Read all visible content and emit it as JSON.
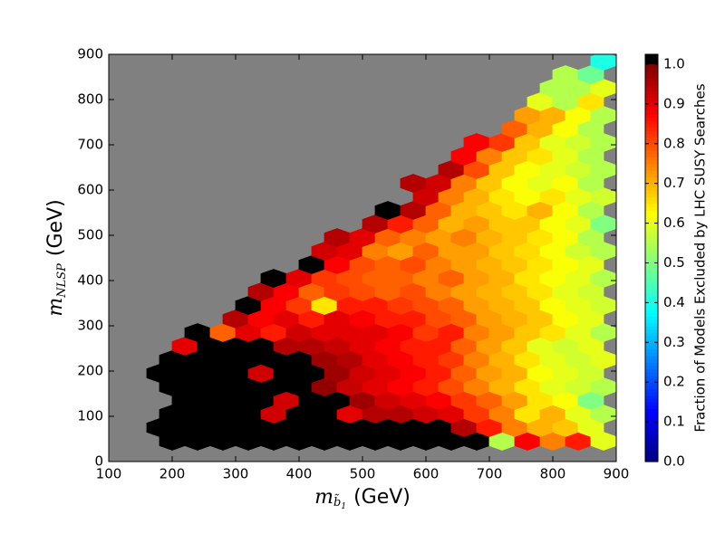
{
  "chart_data": {
    "type": "hexbin",
    "xlabel_symbol": "m",
    "xlabel_subscript": "b̃",
    "xlabel_subsubscript": "1",
    "xlabel_unit": "(GeV)",
    "ylabel_symbol": "m",
    "ylabel_subscript": "NLSP",
    "ylabel_unit": "(GeV)",
    "colorbar_label": "Fraction of Models Excluded by LHC SUSY Searches",
    "xlim": [
      100,
      900
    ],
    "xticks": [
      100,
      200,
      300,
      400,
      500,
      600,
      700,
      800,
      900
    ],
    "ylim": [
      0,
      900
    ],
    "yticks": [
      0,
      100,
      200,
      300,
      400,
      500,
      600,
      700,
      800,
      900
    ],
    "clim": [
      0,
      1.025
    ],
    "cticks": [
      {
        "value": 0,
        "label": "0.0"
      },
      0.1,
      0.2,
      0.3,
      0.4,
      0.5,
      0.6,
      0.7,
      0.8,
      0.9,
      {
        "value": 1,
        "label": "1.0"
      }
    ],
    "colormap": "jet",
    "max_color": "#000000",
    "background": "#808080",
    "rows": [
      {
        "y": 45,
        "x": [
          200,
          240,
          280,
          320,
          360,
          400,
          440,
          480,
          520,
          560,
          600,
          640,
          680,
          720,
          760,
          800,
          840,
          880
        ],
        "values": [
          1,
          1,
          1,
          1,
          1,
          1,
          1,
          1,
          1,
          1,
          1,
          1,
          1,
          0.55,
          0.88,
          0.75,
          0.85,
          0.6
        ]
      },
      {
        "y": 75,
        "x": [
          180,
          220,
          260,
          300,
          340,
          380,
          420,
          460,
          500,
          540,
          580,
          620,
          660,
          700,
          740,
          780,
          820,
          860
        ],
        "values": [
          1,
          1,
          1,
          1,
          1,
          1,
          1,
          1,
          1,
          1,
          1,
          1,
          0.95,
          0.85,
          0.75,
          0.7,
          0.68,
          0.6
        ]
      },
      {
        "y": 105,
        "x": [
          200,
          240,
          280,
          320,
          360,
          400,
          440,
          480,
          520,
          560,
          600,
          640,
          680,
          720,
          760,
          800,
          840,
          880
        ],
        "values": [
          1,
          1,
          1,
          1,
          0.92,
          1,
          1,
          0.9,
          0.95,
          0.95,
          0.92,
          0.9,
          0.82,
          0.75,
          0.65,
          0.7,
          0.6,
          0.55
        ]
      },
      {
        "y": 135,
        "x": [
          220,
          260,
          300,
          340,
          380,
          420,
          460,
          500,
          540,
          580,
          620,
          660,
          700,
          740,
          780,
          820,
          860
        ],
        "values": [
          1,
          1,
          1,
          1,
          0.92,
          1,
          1,
          0.97,
          0.92,
          0.9,
          0.88,
          0.82,
          0.78,
          0.72,
          0.65,
          0.62,
          0.5
        ]
      },
      {
        "y": 165,
        "x": [
          200,
          240,
          280,
          320,
          360,
          400,
          440,
          480,
          520,
          560,
          600,
          640,
          680,
          720,
          760,
          800,
          840,
          880
        ],
        "values": [
          1,
          1,
          1,
          1,
          1,
          1,
          0.98,
          0.93,
          0.9,
          0.88,
          0.85,
          0.8,
          0.75,
          0.7,
          0.65,
          0.6,
          0.58,
          0.55
        ]
      },
      {
        "y": 195,
        "x": [
          180,
          220,
          260,
          300,
          340,
          380,
          420,
          460,
          500,
          540,
          580,
          620,
          660,
          700,
          740,
          780,
          820,
          860
        ],
        "values": [
          1,
          1,
          1,
          1,
          0.92,
          1,
          1,
          0.97,
          0.92,
          0.9,
          0.88,
          0.85,
          0.78,
          0.72,
          0.7,
          0.62,
          0.6,
          0.58
        ]
      },
      {
        "y": 225,
        "x": [
          200,
          240,
          280,
          320,
          360,
          400,
          440,
          480,
          520,
          560,
          600,
          640,
          680,
          720,
          760,
          800,
          840,
          880
        ],
        "values": [
          1,
          1,
          1,
          1,
          1,
          1,
          0.97,
          0.95,
          0.9,
          0.88,
          0.85,
          0.82,
          0.75,
          0.7,
          0.65,
          0.6,
          0.58,
          0.6
        ]
      },
      {
        "y": 255,
        "x": [
          220,
          260,
          300,
          340,
          380,
          420,
          460,
          500,
          540,
          580,
          620,
          660,
          700,
          740,
          780,
          820,
          860
        ],
        "values": [
          0.9,
          1,
          1,
          1,
          0.95,
          0.95,
          0.93,
          0.9,
          0.88,
          0.85,
          0.85,
          0.78,
          0.72,
          0.68,
          0.6,
          0.58,
          0.6
        ]
      },
      {
        "y": 285,
        "x": [
          240,
          280,
          320,
          360,
          400,
          440,
          480,
          520,
          560,
          600,
          640,
          680,
          720,
          760,
          800,
          840,
          880
        ],
        "values": [
          1,
          0.78,
          0.9,
          0.85,
          0.92,
          0.9,
          0.9,
          0.9,
          0.88,
          0.82,
          0.85,
          0.75,
          0.72,
          0.68,
          0.65,
          0.6,
          0.55
        ]
      },
      {
        "y": 315,
        "x": [
          300,
          340,
          380,
          420,
          460,
          500,
          540,
          580,
          620,
          660,
          700,
          740,
          780,
          820,
          860
        ],
        "values": [
          0.95,
          0.88,
          0.9,
          0.85,
          0.9,
          0.88,
          0.85,
          0.85,
          0.8,
          0.78,
          0.72,
          0.7,
          0.68,
          0.62,
          0.6
        ]
      },
      {
        "y": 345,
        "x": [
          320,
          360,
          400,
          440,
          480,
          520,
          560,
          600,
          640,
          680,
          720,
          760,
          800,
          840,
          880
        ],
        "values": [
          1,
          0.88,
          0.82,
          0.65,
          0.85,
          0.85,
          0.82,
          0.8,
          0.78,
          0.72,
          0.7,
          0.68,
          0.62,
          0.6,
          0.58
        ]
      },
      {
        "y": 375,
        "x": [
          340,
          380,
          420,
          460,
          500,
          540,
          580,
          620,
          660,
          700,
          740,
          780,
          820,
          860
        ],
        "values": [
          0.95,
          0.88,
          0.78,
          0.82,
          0.8,
          0.78,
          0.8,
          0.75,
          0.72,
          0.7,
          0.68,
          0.65,
          0.6,
          0.58
        ]
      },
      {
        "y": 405,
        "x": [
          360,
          400,
          440,
          480,
          520,
          560,
          600,
          640,
          680,
          720,
          760,
          800,
          840,
          880
        ],
        "values": [
          1,
          0.9,
          0.82,
          0.8,
          0.78,
          0.78,
          0.75,
          0.78,
          0.72,
          0.7,
          0.65,
          0.62,
          0.6,
          0.55
        ]
      },
      {
        "y": 435,
        "x": [
          420,
          460,
          500,
          540,
          580,
          620,
          660,
          700,
          740,
          780,
          820,
          860
        ],
        "values": [
          1,
          0.88,
          0.8,
          0.78,
          0.8,
          0.75,
          0.72,
          0.7,
          0.68,
          0.65,
          0.62,
          0.6
        ]
      },
      {
        "y": 465,
        "x": [
          440,
          480,
          520,
          560,
          600,
          640,
          680,
          720,
          760,
          800,
          840,
          880
        ],
        "values": [
          0.92,
          0.9,
          0.75,
          0.72,
          0.78,
          0.72,
          0.72,
          0.68,
          0.66,
          0.62,
          0.58,
          0.55
        ]
      },
      {
        "y": 495,
        "x": [
          460,
          500,
          540,
          580,
          620,
          660,
          700,
          740,
          780,
          820,
          860
        ],
        "values": [
          0.95,
          0.9,
          0.78,
          0.75,
          0.72,
          0.75,
          0.7,
          0.68,
          0.65,
          0.62,
          0.55
        ]
      },
      {
        "y": 525,
        "x": [
          520,
          560,
          600,
          640,
          680,
          720,
          760,
          800,
          840,
          880
        ],
        "values": [
          0.95,
          0.85,
          0.78,
          0.7,
          0.72,
          0.68,
          0.68,
          0.62,
          0.6,
          0.5
        ]
      },
      {
        "y": 555,
        "x": [
          540,
          580,
          620,
          660,
          700,
          740,
          780,
          820,
          860
        ],
        "values": [
          1,
          0.95,
          0.78,
          0.7,
          0.68,
          0.65,
          0.7,
          0.62,
          0.55
        ]
      },
      {
        "y": 585,
        "x": [
          600,
          640,
          680,
          720,
          760,
          800,
          840,
          880
        ],
        "values": [
          0.92,
          0.75,
          0.7,
          0.65,
          0.62,
          0.65,
          0.6,
          0.58
        ]
      },
      {
        "y": 615,
        "x": [
          580,
          620,
          660,
          700,
          740,
          780,
          820,
          860
        ],
        "values": [
          0.95,
          0.92,
          0.75,
          0.68,
          0.62,
          0.6,
          0.62,
          0.55
        ]
      },
      {
        "y": 645,
        "x": [
          640,
          680,
          720,
          760,
          800,
          840,
          880
        ],
        "values": [
          0.95,
          0.8,
          0.68,
          0.62,
          0.6,
          0.58,
          0.55
        ]
      },
      {
        "y": 675,
        "x": [
          660,
          700,
          740,
          780,
          820,
          860
        ],
        "values": [
          0.88,
          0.75,
          0.68,
          0.65,
          0.6,
          0.55
        ]
      },
      {
        "y": 705,
        "x": [
          680,
          720,
          760,
          800,
          840,
          880
        ],
        "values": [
          0.88,
          0.82,
          0.68,
          0.6,
          0.58,
          0.55
        ]
      },
      {
        "y": 735,
        "x": [
          740,
          780,
          820,
          860
        ],
        "values": [
          0.78,
          0.7,
          0.62,
          0.55
        ]
      },
      {
        "y": 765,
        "x": [
          760,
          800,
          840,
          880
        ],
        "values": [
          0.72,
          0.7,
          0.62,
          0.55
        ]
      },
      {
        "y": 795,
        "x": [
          780,
          820,
          860
        ],
        "values": [
          0.6,
          0.55,
          0.65
        ]
      },
      {
        "y": 825,
        "x": [
          800,
          840,
          880
        ],
        "values": [
          0.55,
          0.55,
          0.6
        ]
      },
      {
        "y": 855,
        "x": [
          820,
          860
        ],
        "values": [
          0.55,
          0.48
        ]
      },
      {
        "y": 885,
        "x": [
          880
        ],
        "values": [
          0.4
        ]
      }
    ]
  }
}
